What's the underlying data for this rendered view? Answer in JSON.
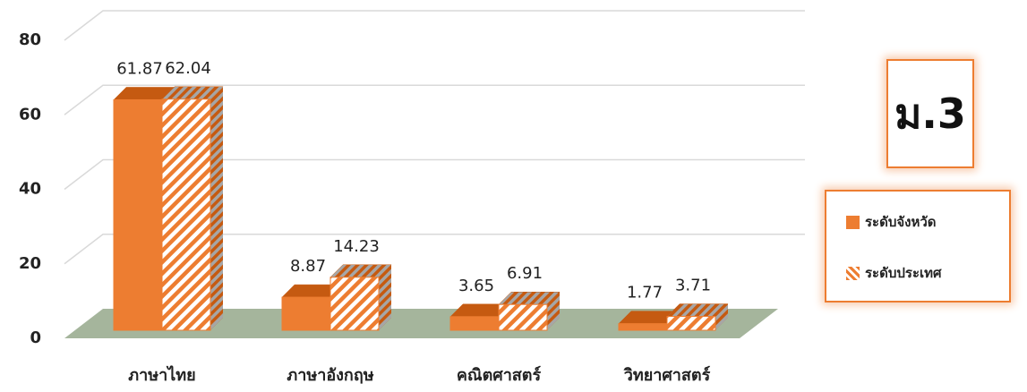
{
  "chart_data": {
    "type": "bar3d",
    "annotation": "ม.3",
    "categories": [
      "ภาษาไทย",
      "ภาษาอังกฤษ",
      "คณิตศาสตร์",
      "วิทยาศาสตร์"
    ],
    "series": [
      {
        "name": "ระดับจังหวัด",
        "color": "#ed7d31",
        "pattern": "solid",
        "values": [
          61.87,
          8.87,
          3.65,
          1.77
        ]
      },
      {
        "name": "ระดับประเทศ",
        "color": "#ed7d31",
        "pattern": "hatch",
        "values": [
          62.04,
          14.23,
          6.91,
          3.71
        ]
      }
    ],
    "ylim": [
      0,
      80
    ],
    "yticks": [
      0,
      20,
      40,
      60,
      80
    ],
    "grid": true
  }
}
